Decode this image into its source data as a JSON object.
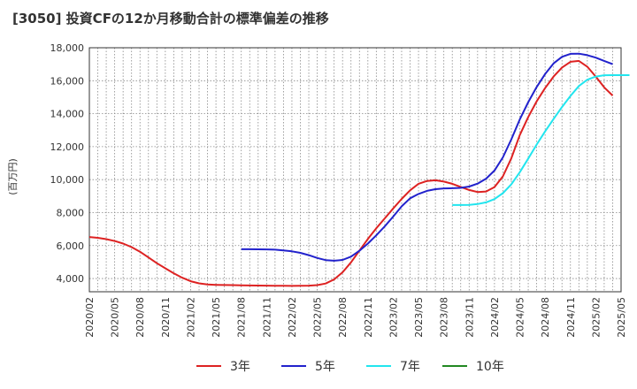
{
  "title": "[3050]  投資CFの12か月移動合計の標準偏差の推移",
  "chart_data": {
    "type": "line",
    "ylabel": "(百万円)",
    "ylim": [
      3200,
      18000
    ],
    "yticks": [
      "4,000",
      "6,000",
      "8,000",
      "10,000",
      "12,000",
      "14,000",
      "16,000",
      "18,000"
    ],
    "ytick_values": [
      4000,
      6000,
      8000,
      10000,
      12000,
      14000,
      16000,
      18000
    ],
    "xticks": [
      "2020/02",
      "2020/05",
      "2020/08",
      "2020/11",
      "2021/02",
      "2021/05",
      "2021/08",
      "2021/11",
      "2022/02",
      "2022/05",
      "2022/08",
      "2022/11",
      "2023/02",
      "2023/05",
      "2023/08",
      "2023/11",
      "2024/02",
      "2024/05",
      "2024/08",
      "2024/11",
      "2025/02",
      "2025/05"
    ],
    "grid": true,
    "legend_position": "bottom",
    "series": [
      {
        "name": "3年",
        "color": "#dd2222",
        "points": [
          [
            "2020/02",
            6520
          ],
          [
            "2020/03",
            6470
          ],
          [
            "2020/04",
            6390
          ],
          [
            "2020/05",
            6280
          ],
          [
            "2020/06",
            6120
          ],
          [
            "2020/07",
            5910
          ],
          [
            "2020/08",
            5630
          ],
          [
            "2020/09",
            5280
          ],
          [
            "2020/10",
            4930
          ],
          [
            "2020/11",
            4620
          ],
          [
            "2020/12",
            4320
          ],
          [
            "2021/01",
            4050
          ],
          [
            "2021/02",
            3840
          ],
          [
            "2021/03",
            3710
          ],
          [
            "2021/04",
            3640
          ],
          [
            "2021/05",
            3620
          ],
          [
            "2021/06",
            3610
          ],
          [
            "2021/07",
            3600
          ],
          [
            "2021/08",
            3590
          ],
          [
            "2021/09",
            3580
          ],
          [
            "2021/10",
            3575
          ],
          [
            "2021/11",
            3570
          ],
          [
            "2021/12",
            3565
          ],
          [
            "2022/01",
            3560
          ],
          [
            "2022/02",
            3555
          ],
          [
            "2022/03",
            3560
          ],
          [
            "2022/04",
            3570
          ],
          [
            "2022/05",
            3600
          ],
          [
            "2022/06",
            3700
          ],
          [
            "2022/07",
            3950
          ],
          [
            "2022/08",
            4380
          ],
          [
            "2022/09",
            4980
          ],
          [
            "2022/10",
            5700
          ],
          [
            "2022/11",
            6400
          ],
          [
            "2022/12",
            7050
          ],
          [
            "2023/01",
            7650
          ],
          [
            "2023/02",
            8250
          ],
          [
            "2023/03",
            8830
          ],
          [
            "2023/04",
            9350
          ],
          [
            "2023/05",
            9750
          ],
          [
            "2023/06",
            9920
          ],
          [
            "2023/07",
            9960
          ],
          [
            "2023/08",
            9880
          ],
          [
            "2023/09",
            9750
          ],
          [
            "2023/10",
            9560
          ],
          [
            "2023/11",
            9370
          ],
          [
            "2023/12",
            9250
          ],
          [
            "2024/01",
            9280
          ],
          [
            "2024/02",
            9550
          ],
          [
            "2024/03",
            10200
          ],
          [
            "2024/04",
            11300
          ],
          [
            "2024/05",
            12700
          ],
          [
            "2024/06",
            13800
          ],
          [
            "2024/07",
            14750
          ],
          [
            "2024/08",
            15550
          ],
          [
            "2024/09",
            16250
          ],
          [
            "2024/10",
            16800
          ],
          [
            "2024/11",
            17150
          ],
          [
            "2024/12",
            17200
          ],
          [
            "2025/01",
            16850
          ],
          [
            "2025/02",
            16250
          ],
          [
            "2025/03",
            15600
          ],
          [
            "2025/04",
            15100
          ]
        ]
      },
      {
        "name": "5年",
        "color": "#2222cc",
        "points": [
          [
            "2021/08",
            5780
          ],
          [
            "2021/09",
            5780
          ],
          [
            "2021/10",
            5775
          ],
          [
            "2021/11",
            5770
          ],
          [
            "2021/12",
            5750
          ],
          [
            "2022/01",
            5710
          ],
          [
            "2022/02",
            5650
          ],
          [
            "2022/03",
            5560
          ],
          [
            "2022/04",
            5420
          ],
          [
            "2022/05",
            5250
          ],
          [
            "2022/06",
            5120
          ],
          [
            "2022/07",
            5080
          ],
          [
            "2022/08",
            5130
          ],
          [
            "2022/09",
            5330
          ],
          [
            "2022/10",
            5690
          ],
          [
            "2022/11",
            6120
          ],
          [
            "2022/12",
            6620
          ],
          [
            "2023/01",
            7170
          ],
          [
            "2023/02",
            7760
          ],
          [
            "2023/03",
            8380
          ],
          [
            "2023/04",
            8870
          ],
          [
            "2023/05",
            9130
          ],
          [
            "2023/06",
            9320
          ],
          [
            "2023/07",
            9420
          ],
          [
            "2023/08",
            9470
          ],
          [
            "2023/09",
            9480
          ],
          [
            "2023/10",
            9500
          ],
          [
            "2023/11",
            9580
          ],
          [
            "2023/12",
            9760
          ],
          [
            "2024/01",
            10060
          ],
          [
            "2024/02",
            10550
          ],
          [
            "2024/03",
            11350
          ],
          [
            "2024/04",
            12450
          ],
          [
            "2024/05",
            13650
          ],
          [
            "2024/06",
            14700
          ],
          [
            "2024/07",
            15620
          ],
          [
            "2024/08",
            16400
          ],
          [
            "2024/09",
            17050
          ],
          [
            "2024/10",
            17450
          ],
          [
            "2024/11",
            17630
          ],
          [
            "2024/12",
            17640
          ],
          [
            "2025/01",
            17550
          ],
          [
            "2025/02",
            17400
          ],
          [
            "2025/03",
            17200
          ],
          [
            "2025/04",
            17000
          ]
        ]
      },
      {
        "name": "7年",
        "color": "#22e5ee",
        "points": [
          [
            "2023/09",
            8460
          ],
          [
            "2023/10",
            8460
          ],
          [
            "2023/11",
            8470
          ],
          [
            "2023/12",
            8520
          ],
          [
            "2024/01",
            8620
          ],
          [
            "2024/02",
            8820
          ],
          [
            "2024/03",
            9180
          ],
          [
            "2024/04",
            9720
          ],
          [
            "2024/05",
            10450
          ],
          [
            "2024/06",
            11280
          ],
          [
            "2024/07",
            12130
          ],
          [
            "2024/08",
            12920
          ],
          [
            "2024/09",
            13680
          ],
          [
            "2024/10",
            14400
          ],
          [
            "2024/11",
            15080
          ],
          [
            "2024/12",
            15680
          ],
          [
            "2025/01",
            16060
          ],
          [
            "2025/02",
            16250
          ],
          [
            "2025/03",
            16330
          ],
          [
            "2025/04",
            16340
          ],
          [
            "2025/05",
            16340
          ],
          [
            "2025/06",
            16340
          ]
        ]
      },
      {
        "name": "10年",
        "color": "#228822",
        "points": []
      }
    ]
  }
}
